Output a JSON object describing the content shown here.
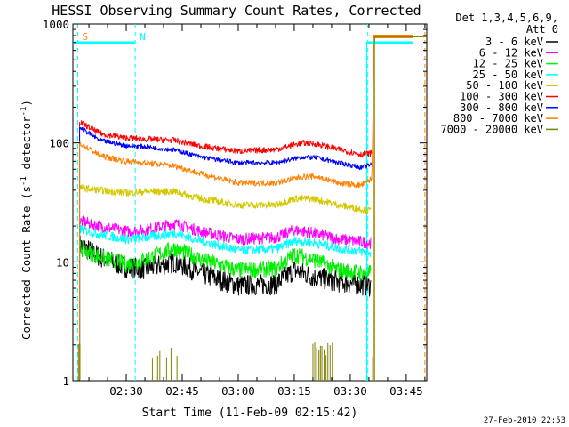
{
  "chart_data": {
    "type": "line",
    "title": "HESSI Observing Summary Count Rates, Corrected",
    "ylabel_text": "Corrected Count Rate (s",
    "ylabel_sup1": "-1",
    "ylabel_mid": " detector",
    "ylabel_sup2": "-1",
    "ylabel_end": ")",
    "xlabel": "Start Time (11-Feb-09 02:15:42)",
    "y_scale": "log",
    "ylim": [
      1,
      1000
    ],
    "xlim_minutes_after_0215": [
      0.7,
      95.5
    ],
    "x_ticks": [
      {
        "label": "02:30",
        "t": 15
      },
      {
        "label": "02:45",
        "t": 30
      },
      {
        "label": "03:00",
        "t": 45
      },
      {
        "label": "03:15",
        "t": 60
      },
      {
        "label": "03:30",
        "t": 75
      },
      {
        "label": "03:45",
        "t": 90
      }
    ],
    "y_ticks": [
      {
        "label": "1",
        "v": 1
      },
      {
        "label": "10",
        "v": 10
      },
      {
        "label": "100",
        "v": 100
      },
      {
        "label": "1000",
        "v": 1000
      }
    ],
    "legend_header_1": "Det 1,3,4,5,6,9,",
    "legend_header_2": "Att 0",
    "legend_position": "right",
    "series": [
      {
        "name": "3 - 6 keV",
        "color": "#000000",
        "base": "6.3",
        "start": 2.5,
        "end": 80.6,
        "noise": 0.09,
        "profile": [
          [
            2.5,
            14
          ],
          [
            8,
            11
          ],
          [
            15,
            9
          ],
          [
            20,
            8.7
          ],
          [
            28,
            10
          ],
          [
            35,
            8
          ],
          [
            45,
            6.3
          ],
          [
            55,
            6.5
          ],
          [
            60,
            8.5
          ],
          [
            65,
            7.5
          ],
          [
            72,
            6.8
          ],
          [
            80,
            6.3
          ]
        ]
      },
      {
        "name": "6 - 12 keV",
        "color": "#ff00ff",
        "start": 2.5,
        "end": 80.6,
        "noise": 0.05,
        "profile": [
          [
            2.5,
            22
          ],
          [
            8,
            20
          ],
          [
            15,
            18
          ],
          [
            20,
            18.5
          ],
          [
            28,
            21
          ],
          [
            35,
            18
          ],
          [
            45,
            15.5
          ],
          [
            55,
            16
          ],
          [
            60,
            18.5
          ],
          [
            65,
            17.5
          ],
          [
            72,
            15.5
          ],
          [
            80,
            14.5
          ]
        ]
      },
      {
        "name": "12 - 25 keV",
        "color": "#00ee00",
        "start": 2.5,
        "end": 80.6,
        "noise": 0.07,
        "profile": [
          [
            2.5,
            13
          ],
          [
            8,
            11
          ],
          [
            15,
            9.5
          ],
          [
            20,
            10.5
          ],
          [
            28,
            13
          ],
          [
            35,
            10.5
          ],
          [
            45,
            8.5
          ],
          [
            55,
            8.8
          ],
          [
            60,
            11.5
          ],
          [
            65,
            10.5
          ],
          [
            72,
            8.5
          ],
          [
            80,
            8
          ]
        ]
      },
      {
        "name": "25 - 50 keV",
        "color": "#00ffff",
        "start": 2.5,
        "end": 80.6,
        "noise": 0.04,
        "profile": [
          [
            2.5,
            19
          ],
          [
            8,
            17
          ],
          [
            15,
            15.5
          ],
          [
            20,
            16
          ],
          [
            28,
            17.5
          ],
          [
            35,
            15
          ],
          [
            45,
            12.5
          ],
          [
            55,
            12.8
          ],
          [
            60,
            15
          ],
          [
            65,
            14.5
          ],
          [
            72,
            13
          ],
          [
            80,
            12
          ]
        ]
      },
      {
        "name": "50 - 100 keV",
        "color": "#d4c800",
        "start": 2.5,
        "end": 80.6,
        "noise": 0.03,
        "profile": [
          [
            2.5,
            42
          ],
          [
            8,
            40
          ],
          [
            15,
            38
          ],
          [
            20,
            39
          ],
          [
            28,
            39
          ],
          [
            35,
            34
          ],
          [
            45,
            30
          ],
          [
            55,
            30
          ],
          [
            60,
            34
          ],
          [
            65,
            34
          ],
          [
            72,
            30
          ],
          [
            80,
            27
          ]
        ]
      },
      {
        "name": "100 - 300 keV",
        "color": "#ff0000",
        "start": 2.5,
        "end": 80.8,
        "noise": 0.025,
        "profile": [
          [
            2.5,
            150
          ],
          [
            8,
            120
          ],
          [
            15,
            110
          ],
          [
            20,
            108
          ],
          [
            28,
            105
          ],
          [
            35,
            94
          ],
          [
            45,
            85
          ],
          [
            55,
            88
          ],
          [
            62,
            100
          ],
          [
            66,
            98
          ],
          [
            72,
            88
          ],
          [
            78,
            80
          ],
          [
            80.8,
            82
          ]
        ]
      },
      {
        "name": "300 - 800 keV",
        "color": "#0000ff",
        "start": 2.5,
        "end": 80.8,
        "noise": 0.02,
        "profile": [
          [
            2.5,
            135
          ],
          [
            8,
            105
          ],
          [
            15,
            95
          ],
          [
            20,
            93
          ],
          [
            28,
            87
          ],
          [
            35,
            76
          ],
          [
            45,
            68
          ],
          [
            55,
            68
          ],
          [
            62,
            76
          ],
          [
            66,
            75
          ],
          [
            72,
            68
          ],
          [
            78,
            62
          ],
          [
            80.8,
            66
          ]
        ]
      },
      {
        "name": "800 - 7000 keV",
        "color": "#ff8000",
        "start": 2.5,
        "end": 95.5,
        "noise": 0.025,
        "profile": [
          [
            2.5,
            100
          ],
          [
            8,
            78
          ],
          [
            15,
            70
          ],
          [
            20,
            68
          ],
          [
            28,
            64
          ],
          [
            35,
            55
          ],
          [
            45,
            46
          ],
          [
            55,
            46
          ],
          [
            62,
            52
          ],
          [
            66,
            52
          ],
          [
            72,
            46
          ],
          [
            78,
            44
          ],
          [
            80.8,
            50
          ],
          [
            81.5,
            780
          ],
          [
            95.5,
            780
          ]
        ]
      },
      {
        "name": "7000 - 20000 keV",
        "color": "#808000",
        "start": 2.5,
        "end": 95.5,
        "noise": 0,
        "profile": [
          [
            2.5,
            2
          ]
        ]
      }
    ],
    "legend_colors_override": {
      "800 - 7000 keV": "#ff8000"
    },
    "annotations": [
      {
        "text": "S",
        "t": 2.0,
        "color": "#ff8000"
      },
      {
        "text": "N",
        "t": 17.4,
        "color": "#00ffff"
      }
    ],
    "footer_timestamp": "27-Feb-2010 22:53"
  }
}
